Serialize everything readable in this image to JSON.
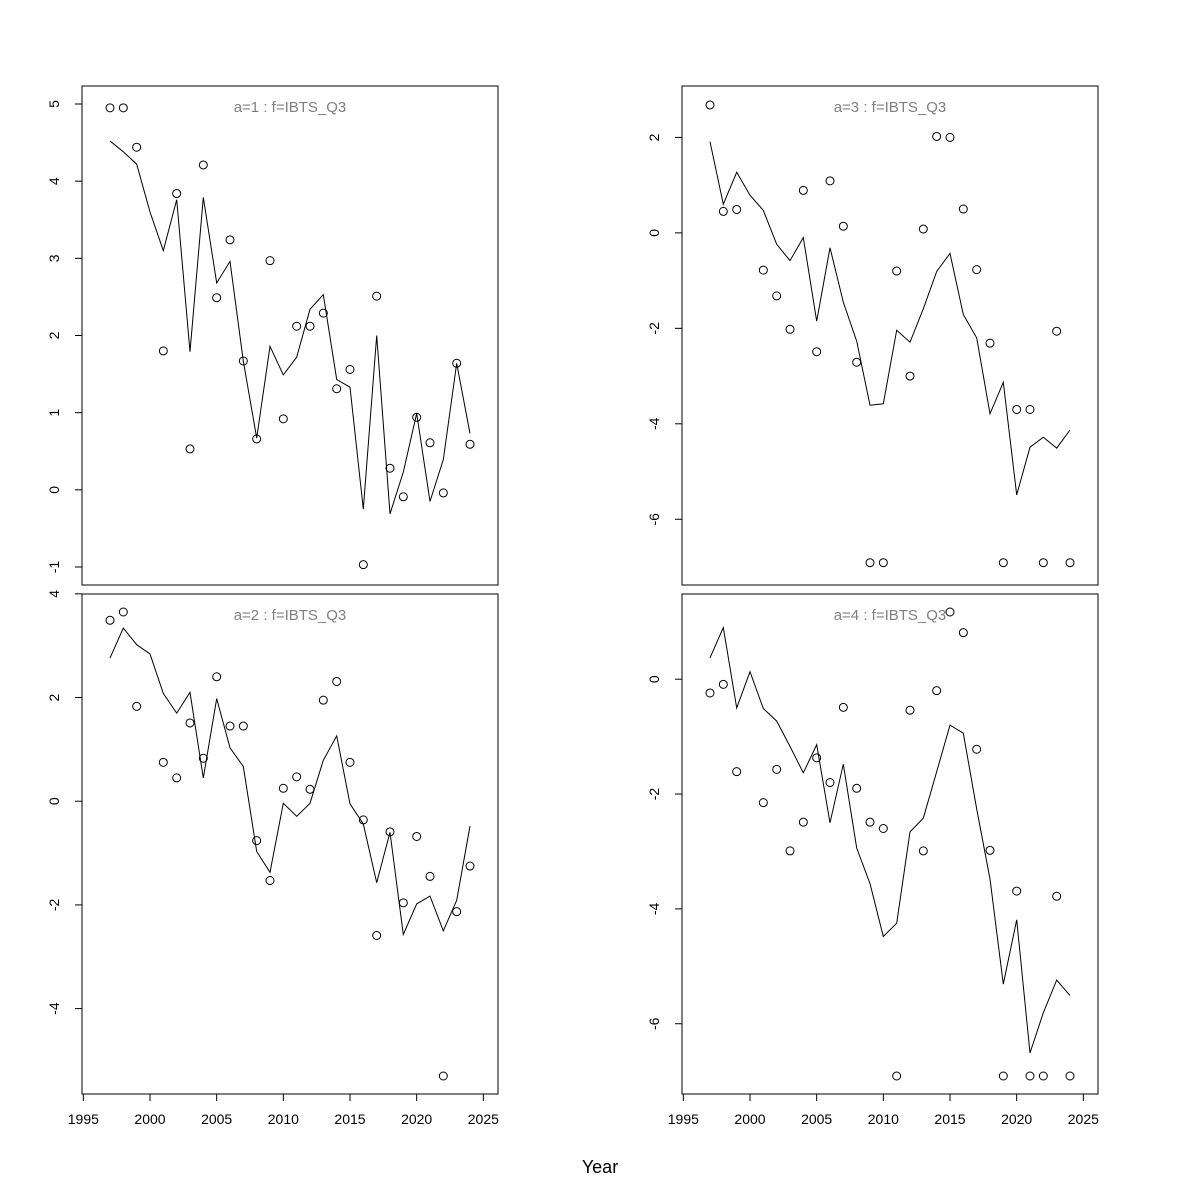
{
  "chart_data": [
    {
      "type": "line",
      "panel_label": "a=1  :  f=IBTS_Q3",
      "xlim": [
        1997,
        2024
      ],
      "ylim": [
        -1,
        5
      ],
      "yticks": [
        -1,
        0,
        1,
        2,
        3,
        4,
        5
      ],
      "series": [
        {
          "type": "scatter",
          "x": [
            1997,
            1998,
            1999,
            2001,
            2002,
            2003,
            2004,
            2005,
            2006,
            2007,
            2008,
            2009,
            2010,
            2011,
            2012,
            2013,
            2014,
            2015,
            2016,
            2017,
            2018,
            2019,
            2020,
            2021,
            2022,
            2023,
            2024
          ],
          "y": [
            4.95,
            4.95,
            4.44,
            1.8,
            3.84,
            0.53,
            4.21,
            2.49,
            3.24,
            1.67,
            0.66,
            2.97,
            0.92,
            2.12,
            2.12,
            2.29,
            1.31,
            1.56,
            -0.97,
            2.51,
            0.28,
            -0.09,
            0.94,
            0.61,
            -0.04,
            1.64,
            0.59
          ]
        },
        {
          "type": "line",
          "x": [
            1997,
            1998,
            1999,
            2000,
            2001,
            2002,
            2003,
            2004,
            2005,
            2006,
            2007,
            2008,
            2009,
            2010,
            2011,
            2012,
            2013,
            2014,
            2015,
            2016,
            2017,
            2018,
            2019,
            2020,
            2021,
            2022,
            2023,
            2024
          ],
          "y": [
            4.52,
            4.38,
            4.22,
            3.6,
            3.1,
            3.76,
            1.79,
            3.79,
            2.68,
            2.96,
            1.67,
            0.67,
            1.86,
            1.49,
            1.72,
            2.34,
            2.53,
            1.43,
            1.33,
            -0.25,
            2.0,
            -0.31,
            0.23,
            0.99,
            -0.15,
            0.39,
            1.64,
            0.73
          ]
        }
      ]
    },
    {
      "type": "line",
      "panel_label": "a=3  :  f=IBTS_Q3",
      "xlim": [
        1997,
        2024
      ],
      "ylim": [
        -7,
        2.7
      ],
      "yticks": [
        -6,
        -4,
        -2,
        0,
        2
      ],
      "series": [
        {
          "type": "scatter",
          "x": [
            1997,
            1998,
            1999,
            2001,
            2002,
            2003,
            2004,
            2005,
            2006,
            2007,
            2008,
            2009,
            2010,
            2011,
            2012,
            2013,
            2014,
            2015,
            2016,
            2017,
            2018,
            2019,
            2020,
            2021,
            2022,
            2023,
            2024
          ],
          "y": [
            2.68,
            0.45,
            0.49,
            -0.78,
            -1.32,
            -2.02,
            0.89,
            -2.49,
            1.09,
            0.14,
            -2.71,
            -6.91,
            -6.91,
            -0.8,
            -3.0,
            0.08,
            2.02,
            2.0,
            0.5,
            -0.77,
            -2.31,
            -6.91,
            -3.7,
            -3.7,
            -6.91,
            -2.06,
            -6.91
          ]
        },
        {
          "type": "line",
          "x": [
            1997,
            1998,
            1999,
            2000,
            2001,
            2002,
            2003,
            2004,
            2005,
            2006,
            2007,
            2008,
            2009,
            2010,
            2011,
            2012,
            2013,
            2014,
            2015,
            2016,
            2017,
            2018,
            2019,
            2020,
            2021,
            2022,
            2023,
            2024
          ],
          "y": [
            1.91,
            0.6,
            1.27,
            0.79,
            0.47,
            -0.24,
            -0.58,
            -0.1,
            -1.85,
            -0.31,
            -1.45,
            -2.27,
            -3.61,
            -3.58,
            -2.04,
            -2.29,
            -1.59,
            -0.81,
            -0.43,
            -1.71,
            -2.2,
            -3.79,
            -3.13,
            -5.49,
            -4.49,
            -4.28,
            -4.51,
            -4.13
          ]
        }
      ]
    },
    {
      "type": "line",
      "panel_label": "a=2  :  f=IBTS_Q3",
      "xlim": [
        1997,
        2024
      ],
      "ylim": [
        -5.3,
        3.65
      ],
      "yticks": [
        -4,
        -2,
        0,
        2,
        4
      ],
      "series": [
        {
          "type": "scatter",
          "x": [
            1997,
            1998,
            1999,
            2001,
            2002,
            2003,
            2004,
            2005,
            2006,
            2007,
            2008,
            2009,
            2010,
            2011,
            2012,
            2013,
            2014,
            2015,
            2016,
            2017,
            2018,
            2019,
            2020,
            2021,
            2022,
            2023,
            2024
          ],
          "y": [
            3.49,
            3.65,
            1.83,
            0.75,
            0.45,
            1.51,
            0.83,
            2.4,
            1.45,
            1.45,
            -0.76,
            -1.53,
            0.25,
            0.47,
            0.23,
            1.95,
            2.31,
            0.75,
            -0.36,
            -2.59,
            -0.59,
            -1.96,
            -0.68,
            -1.45,
            -5.3,
            -2.13,
            -1.25
          ]
        },
        {
          "type": "line",
          "x": [
            1997,
            1998,
            1999,
            2000,
            2001,
            2002,
            2003,
            2004,
            2005,
            2006,
            2007,
            2008,
            2009,
            2010,
            2011,
            2012,
            2013,
            2014,
            2015,
            2016,
            2017,
            2018,
            2019,
            2020,
            2021,
            2022,
            2023,
            2024
          ],
          "y": [
            2.76,
            3.34,
            3.02,
            2.84,
            2.08,
            1.7,
            2.1,
            0.45,
            1.98,
            1.03,
            0.67,
            -0.97,
            -1.37,
            -0.04,
            -0.29,
            -0.04,
            0.79,
            1.26,
            -0.05,
            -0.44,
            -1.57,
            -0.6,
            -2.57,
            -1.98,
            -1.83,
            -2.5,
            -1.91,
            -0.48
          ]
        }
      ]
    },
    {
      "type": "line",
      "panel_label": "a=4  :  f=IBTS_Q3",
      "xlim": [
        1997,
        2024
      ],
      "ylim": [
        -6.91,
        1.17
      ],
      "yticks": [
        -6,
        -4,
        -2,
        0
      ],
      "series": [
        {
          "type": "scatter",
          "x": [
            1997,
            1998,
            1999,
            2001,
            2002,
            2003,
            2004,
            2005,
            2006,
            2007,
            2008,
            2009,
            2010,
            2011,
            2012,
            2013,
            2014,
            2015,
            2016,
            2017,
            2018,
            2019,
            2020,
            2021,
            2022,
            2023,
            2024
          ],
          "y": [
            -0.24,
            -0.09,
            -1.61,
            -2.15,
            -1.57,
            -2.99,
            -2.49,
            -1.37,
            -1.8,
            -0.49,
            -1.9,
            -2.49,
            -2.6,
            -6.91,
            -0.54,
            -2.99,
            -0.2,
            1.17,
            0.81,
            -1.22,
            -2.98,
            -6.91,
            -3.69,
            -6.91,
            -6.91,
            -3.78,
            -6.91
          ]
        },
        {
          "type": "line",
          "x": [
            1997,
            1998,
            1999,
            2000,
            2001,
            2002,
            2003,
            2004,
            2005,
            2006,
            2007,
            2008,
            2009,
            2010,
            2011,
            2012,
            2013,
            2014,
            2015,
            2016,
            2017,
            2018,
            2019,
            2020,
            2021,
            2022,
            2023,
            2024
          ],
          "y": [
            0.37,
            0.9,
            -0.5,
            0.13,
            -0.51,
            -0.73,
            -1.17,
            -1.63,
            -1.14,
            -2.5,
            -1.48,
            -2.94,
            -3.56,
            -4.48,
            -4.25,
            -2.66,
            -2.42,
            -1.61,
            -0.8,
            -0.94,
            -2.26,
            -3.48,
            -5.31,
            -4.19,
            -6.51,
            -5.81,
            -5.24,
            -5.51
          ]
        }
      ]
    }
  ],
  "xticks": [
    1995,
    2000,
    2005,
    2010,
    2015,
    2020,
    2025
  ],
  "xlabel": "Year",
  "colors": {
    "axis": "#000000",
    "panel_label": "#808080"
  }
}
